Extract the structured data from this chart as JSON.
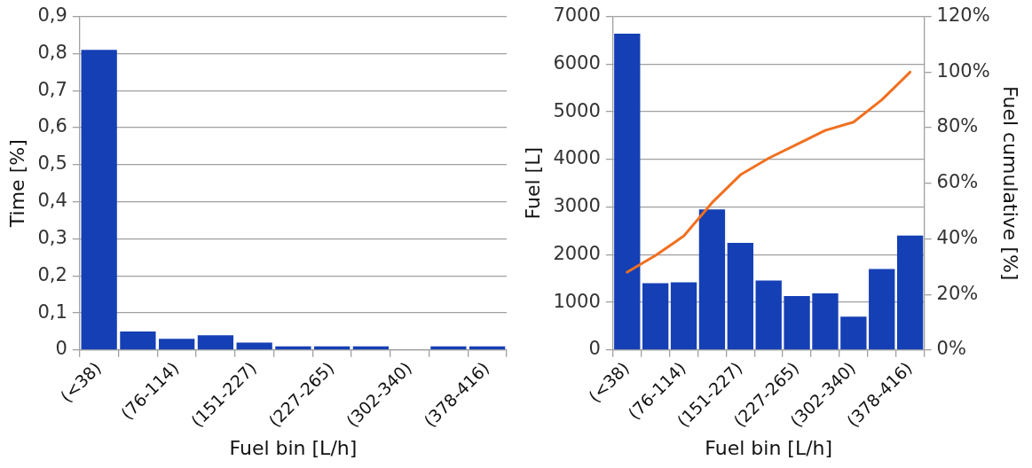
{
  "chart_data": [
    {
      "type": "bar",
      "xlabel": "Fuel bin [L/h]",
      "ylabel": "Time [%]",
      "categories": [
        "(<38)",
        null,
        "(76-114)",
        null,
        "(151-227)",
        null,
        "(227-265)",
        null,
        "(302-340)",
        null,
        "(378-416)"
      ],
      "series": [
        {
          "color": "#153fb5",
          "values": [
            0.81,
            0.05,
            0.03,
            0.04,
            0.02,
            0.01,
            0.01,
            0.01,
            0,
            0.01,
            0.01
          ]
        }
      ],
      "ylim": [
        0,
        0.9
      ],
      "yticks": [
        {
          "value": 0,
          "label": "0"
        },
        {
          "value": 0.1,
          "label": "0,1"
        },
        {
          "value": 0.2,
          "label": "0,2"
        },
        {
          "value": 0.3,
          "label": "0,3"
        },
        {
          "value": 0.4,
          "label": "0,4"
        },
        {
          "value": 0.5,
          "label": "0,5"
        },
        {
          "value": 0.6,
          "label": "0,6"
        },
        {
          "value": 0.7,
          "label": "0,7"
        },
        {
          "value": 0.8,
          "label": "0,8"
        },
        {
          "value": 0.9,
          "label": "0,9"
        }
      ],
      "grid": "y",
      "legend": false
    },
    {
      "type": "bar",
      "xlabel": "Fuel bin [L/h]",
      "ylabel": "Fuel [L]",
      "y2label": "Fuel cumulative [%]",
      "categories": [
        "(<38)",
        null,
        "(76-114)",
        null,
        "(151-227)",
        null,
        "(227-265)",
        null,
        "(302-340)",
        null,
        "(378-416)"
      ],
      "series": [
        {
          "color": "#153fb5",
          "values": [
            6640,
            1400,
            1420,
            2950,
            2250,
            1460,
            1130,
            1190,
            700,
            1700,
            2400
          ]
        },
        {
          "type": "line",
          "axis": "y2",
          "color": "#f07020",
          "marker": "none",
          "values": [
            28,
            34,
            41,
            53,
            63,
            69,
            74,
            79,
            82,
            90,
            100
          ]
        }
      ],
      "ylim": [
        0,
        7000
      ],
      "yticks": [
        0,
        1000,
        2000,
        3000,
        4000,
        5000,
        6000,
        7000
      ],
      "y2lim": [
        0,
        120
      ],
      "y2ticks": [
        {
          "value": 0,
          "label": "0%"
        },
        {
          "value": 20,
          "label": "20%"
        },
        {
          "value": 40,
          "label": "40%"
        },
        {
          "value": 60,
          "label": "60%"
        },
        {
          "value": 80,
          "label": "80%"
        },
        {
          "value": 100,
          "label": "100%"
        },
        {
          "value": 120,
          "label": "120%"
        }
      ],
      "grid": "y",
      "legend": false
    }
  ]
}
